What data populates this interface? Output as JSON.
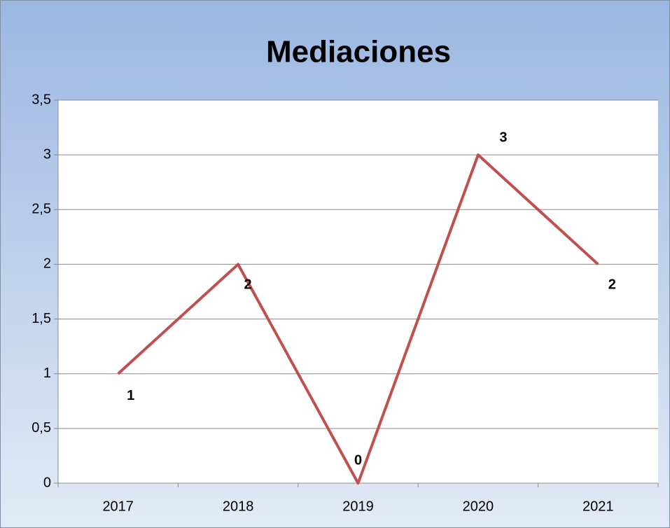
{
  "chart_data": {
    "type": "line",
    "title": "Mediaciones",
    "categories": [
      "2017",
      "2018",
      "2019",
      "2020",
      "2021"
    ],
    "series": [
      {
        "name": "Mediaciones",
        "color": "#c0504d",
        "values": [
          1,
          2,
          0,
          3,
          2
        ]
      }
    ],
    "ylim": [
      0,
      3.5
    ],
    "yticks": [
      0,
      {
        "value": 0.5,
        "label": "0,5"
      },
      1,
      {
        "value": 1.5,
        "label": "1,5"
      },
      2,
      {
        "value": 2.5,
        "label": "2,5"
      },
      3,
      {
        "value": 3.5,
        "label": "3,5"
      }
    ],
    "grid": true,
    "legend": false
  }
}
